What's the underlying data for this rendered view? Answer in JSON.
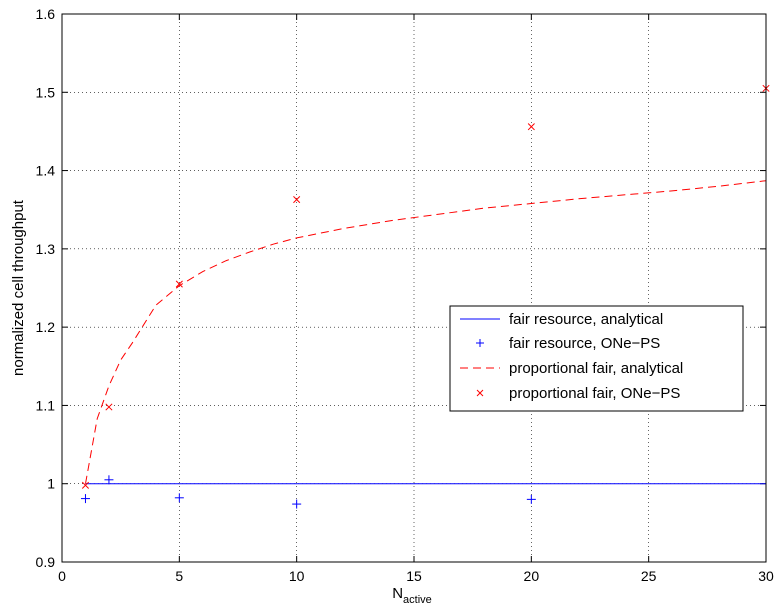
{
  "chart_data": {
    "type": "line",
    "title": "",
    "xlabel": "N",
    "xlabel_subscript": "active",
    "ylabel": "normalized cell throughput",
    "xlim": [
      0,
      30
    ],
    "ylim": [
      0.9,
      1.6
    ],
    "xticks": [
      0,
      5,
      10,
      15,
      20,
      25,
      30
    ],
    "yticks": [
      0.9,
      1,
      1.1,
      1.2,
      1.3,
      1.4,
      1.5,
      1.6
    ],
    "xtick_labels": [
      "0",
      "5",
      "10",
      "15",
      "20",
      "25",
      "30"
    ],
    "ytick_labels": [
      "0.9",
      "1",
      "1.1",
      "1.2",
      "1.3",
      "1.4",
      "1.5",
      "1.6"
    ],
    "grid": true,
    "legend_position": "center-right",
    "series": [
      {
        "name": "fair resource, analytical",
        "style": "line",
        "color": "#0000ff",
        "x": [
          1,
          30
        ],
        "y": [
          1,
          1
        ]
      },
      {
        "name": "fair resource, ONe−PS",
        "style": "plus",
        "color": "#0000ff",
        "x": [
          1,
          2,
          5,
          10,
          20
        ],
        "y": [
          0.981,
          1.005,
          0.982,
          0.974,
          0.98
        ]
      },
      {
        "name": "proportional fair, analytical",
        "style": "dashed",
        "color": "#ff0000",
        "x": [
          1,
          1.5,
          2,
          2.5,
          3,
          4,
          5,
          6,
          7,
          8,
          9,
          10,
          12,
          14,
          16,
          18,
          20,
          22,
          24,
          26,
          28,
          30
        ],
        "y": [
          1.0,
          1.083,
          1.125,
          1.158,
          1.18,
          1.228,
          1.253,
          1.271,
          1.285,
          1.296,
          1.306,
          1.314,
          1.326,
          1.336,
          1.344,
          1.352,
          1.358,
          1.364,
          1.369,
          1.374,
          1.38,
          1.387
        ]
      },
      {
        "name": "proportional fair, ONe−PS",
        "style": "cross",
        "color": "#ff0000",
        "x": [
          1,
          2,
          5,
          10,
          20,
          30
        ],
        "y": [
          0.998,
          1.098,
          1.255,
          1.363,
          1.456,
          1.505
        ]
      }
    ]
  }
}
